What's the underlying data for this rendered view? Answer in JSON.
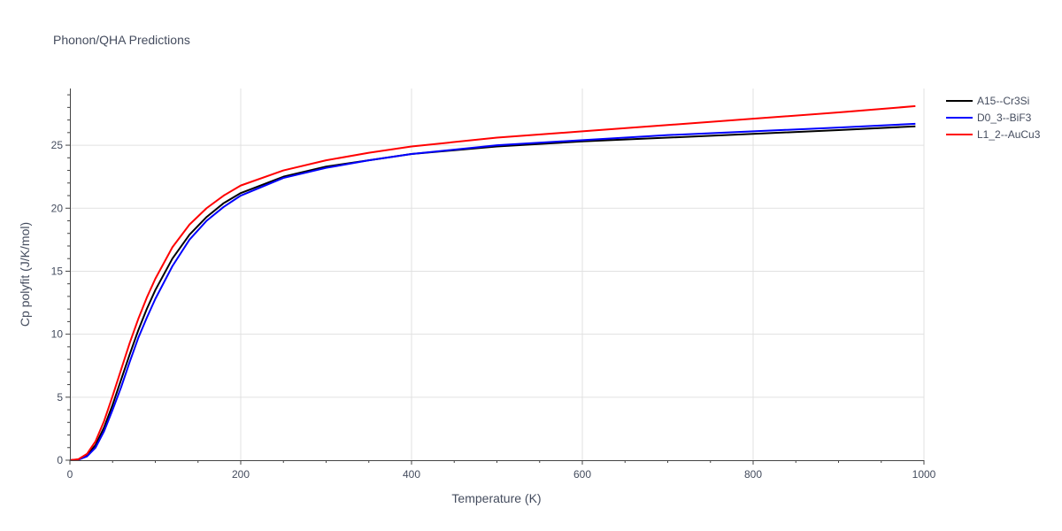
{
  "chart_data": {
    "type": "line",
    "title": "Phonon/QHA Predictions",
    "xlabel": "Temperature (K)",
    "ylabel": "Cp polyfit (J/K/mol)",
    "xlim": [
      0,
      1000
    ],
    "ylim": [
      0,
      29.5
    ],
    "x_ticks": [
      "0",
      "200",
      "400",
      "600",
      "800",
      "1000"
    ],
    "y_ticks": [
      "0",
      "5",
      "10",
      "15",
      "20",
      "25"
    ],
    "x_tick_values": [
      0,
      200,
      400,
      600,
      800,
      1000
    ],
    "y_tick_values": [
      0,
      5,
      10,
      15,
      20,
      25
    ],
    "grid": true,
    "legend_position": "top-right",
    "series": [
      {
        "name": "A15--Cr3Si",
        "color": "#000000",
        "x": [
          0,
          10,
          20,
          30,
          40,
          50,
          60,
          70,
          80,
          90,
          100,
          120,
          140,
          160,
          180,
          200,
          250,
          300,
          350,
          400,
          500,
          600,
          700,
          800,
          900,
          990
        ],
        "y": [
          0,
          0.05,
          0.4,
          1.2,
          2.6,
          4.4,
          6.4,
          8.4,
          10.3,
          12.0,
          13.5,
          16.0,
          17.9,
          19.3,
          20.4,
          21.2,
          22.5,
          23.3,
          23.8,
          24.3,
          24.9,
          25.3,
          25.6,
          25.9,
          26.2,
          26.5
        ]
      },
      {
        "name": "D0_3--BiF3",
        "color": "#0000ff",
        "x": [
          0,
          10,
          20,
          30,
          40,
          50,
          60,
          70,
          80,
          90,
          100,
          120,
          140,
          160,
          180,
          200,
          250,
          300,
          350,
          400,
          500,
          600,
          700,
          800,
          900,
          990
        ],
        "y": [
          0,
          0.04,
          0.3,
          1.0,
          2.3,
          4.0,
          5.8,
          7.8,
          9.7,
          11.3,
          12.8,
          15.4,
          17.5,
          19.0,
          20.1,
          21.0,
          22.4,
          23.2,
          23.8,
          24.3,
          25.0,
          25.4,
          25.8,
          26.1,
          26.4,
          26.7
        ]
      },
      {
        "name": "L1_2--AuCu3",
        "color": "#ff0000",
        "x": [
          0,
          10,
          20,
          30,
          40,
          50,
          60,
          70,
          80,
          90,
          100,
          120,
          140,
          160,
          180,
          200,
          250,
          300,
          350,
          400,
          500,
          600,
          700,
          800,
          900,
          990
        ],
        "y": [
          0,
          0.08,
          0.5,
          1.5,
          3.1,
          5.1,
          7.2,
          9.3,
          11.2,
          12.9,
          14.4,
          16.9,
          18.7,
          20.0,
          21.0,
          21.8,
          23.0,
          23.8,
          24.4,
          24.9,
          25.6,
          26.1,
          26.6,
          27.1,
          27.6,
          28.1
        ]
      }
    ]
  }
}
